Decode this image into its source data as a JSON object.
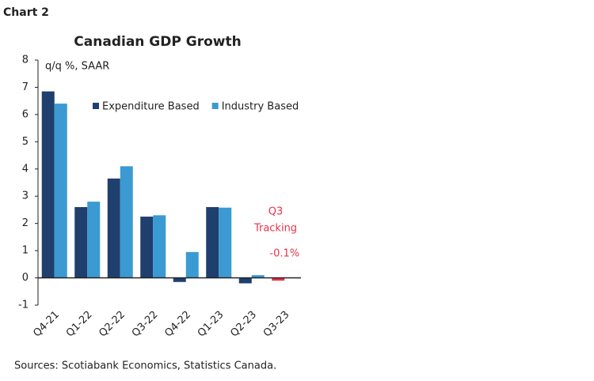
{
  "chart_label": "Chart 2",
  "chart_data": {
    "type": "bar",
    "title": "Canadian GDP Growth",
    "y_label": "q/q %, SAAR",
    "categories": [
      "Q4-21",
      "Q1-22",
      "Q2-22",
      "Q3-22",
      "Q4-22",
      "Q1-23",
      "Q2-23",
      "Q3-23"
    ],
    "series": [
      {
        "name": "Expenditure Based",
        "color": "#1f3f6e",
        "values": [
          6.85,
          2.6,
          3.65,
          2.25,
          -0.15,
          2.6,
          -0.2,
          -0.1
        ],
        "point_colors": [
          "#1f3f6e",
          "#1f3f6e",
          "#1f3f6e",
          "#1f3f6e",
          "#1f3f6e",
          "#1f3f6e",
          "#1f3f6e",
          "#e8334a"
        ],
        "value_labels": [
          null,
          null,
          null,
          null,
          null,
          null,
          null,
          "-0.1%"
        ]
      },
      {
        "name": "Industry Based",
        "color": "#3b9ad2",
        "values": [
          6.4,
          2.8,
          4.1,
          2.3,
          0.95,
          2.58,
          0.1,
          null
        ]
      }
    ],
    "annotation": [
      "Q3",
      "Tracking"
    ],
    "annotation_color": "#e8334a",
    "ylim": [
      -1,
      8
    ],
    "yticks": [
      -1,
      0,
      1,
      2,
      3,
      4,
      5,
      6,
      7,
      8
    ],
    "legend": "top-right"
  },
  "source": "Sources: Scotiabank Economics, Statistics Canada."
}
